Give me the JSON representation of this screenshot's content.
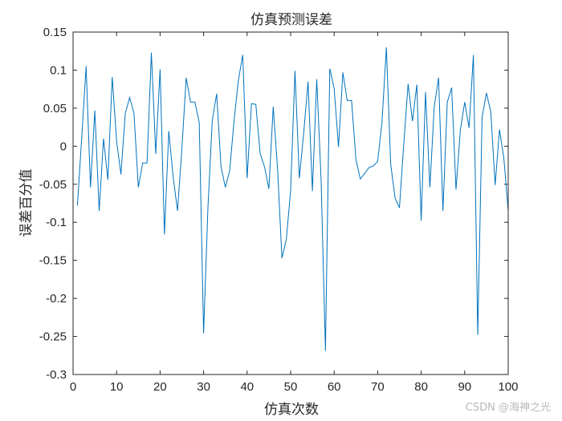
{
  "chart_data": {
    "type": "line",
    "title": "仿真预测误差",
    "xlabel": "仿真次数",
    "ylabel": "误差百分值",
    "xlim": [
      0,
      100
    ],
    "ylim": [
      -0.3,
      0.15
    ],
    "x_ticks": [
      0,
      10,
      20,
      30,
      40,
      50,
      60,
      70,
      80,
      90,
      100
    ],
    "y_ticks": [
      -0.3,
      -0.25,
      -0.2,
      -0.15,
      -0.1,
      -0.05,
      0,
      0.05,
      0.1,
      0.15
    ],
    "x_tick_labels": [
      "0",
      "10",
      "20",
      "30",
      "40",
      "50",
      "60",
      "70",
      "80",
      "90",
      "100"
    ],
    "y_tick_labels": [
      "-0.3",
      "-0.25",
      "-0.2",
      "-0.15",
      "-0.1",
      "-0.05",
      "0",
      "0.05",
      "0.1",
      "0.15"
    ],
    "grid": false,
    "series": [
      {
        "color": "#0072BD",
        "x": [
          1,
          2,
          3,
          4,
          5,
          6,
          7,
          8,
          9,
          10,
          11,
          12,
          13,
          14,
          15,
          16,
          17,
          18,
          19,
          20,
          21,
          22,
          23,
          24,
          25,
          26,
          27,
          28,
          29,
          30,
          31,
          32,
          33,
          34,
          35,
          36,
          37,
          38,
          39,
          40,
          41,
          42,
          43,
          44,
          45,
          46,
          47,
          48,
          49,
          50,
          51,
          52,
          53,
          54,
          55,
          56,
          57,
          58,
          59,
          60,
          61,
          62,
          63,
          64,
          65,
          66,
          67,
          68,
          69,
          70,
          71,
          72,
          73,
          74,
          75,
          76,
          77,
          78,
          79,
          80,
          81,
          82,
          83,
          84,
          85,
          86,
          87,
          88,
          89,
          90,
          91,
          92,
          93,
          94,
          95,
          96,
          97,
          98,
          99,
          100
        ],
        "values": [
          -0.078,
          0.012,
          0.105,
          -0.054,
          0.047,
          -0.085,
          0.01,
          -0.044,
          0.091,
          0.007,
          -0.037,
          0.043,
          0.064,
          0.043,
          -0.054,
          -0.022,
          -0.022,
          0.123,
          -0.01,
          0.101,
          -0.116,
          0.02,
          -0.04,
          -0.085,
          -0.004,
          0.09,
          0.058,
          0.058,
          0.031,
          -0.246,
          -0.08,
          0.034,
          0.069,
          -0.027,
          -0.054,
          -0.032,
          0.034,
          0.087,
          0.12,
          -0.042,
          0.056,
          0.055,
          -0.01,
          -0.027,
          -0.056,
          0.052,
          -0.03,
          -0.147,
          -0.123,
          -0.058,
          0.099,
          -0.042,
          0.017,
          0.085,
          -0.059,
          0.088,
          -0.044,
          -0.269,
          0.102,
          0.076,
          -0.001,
          0.097,
          0.06,
          0.06,
          -0.017,
          -0.043,
          -0.036,
          -0.028,
          -0.026,
          -0.02,
          0.032,
          0.13,
          -0.024,
          -0.068,
          -0.081,
          0.003,
          0.082,
          0.033,
          0.081,
          -0.098,
          0.071,
          -0.054,
          0.052,
          0.09,
          -0.085,
          0.058,
          0.077,
          -0.057,
          0.021,
          0.058,
          0.024,
          0.12,
          -0.248,
          0.038,
          0.07,
          0.045,
          -0.051,
          0.022,
          -0.016,
          -0.085
        ]
      }
    ]
  },
  "watermark": "CSDN @海神之光"
}
